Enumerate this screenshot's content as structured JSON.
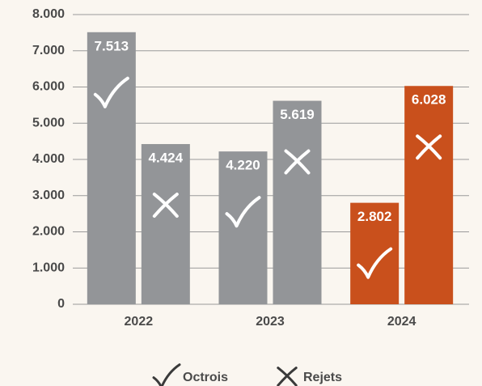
{
  "chart_data": {
    "type": "bar",
    "categories": [
      "2022",
      "2023",
      "2024"
    ],
    "series": [
      {
        "name": "Octrois",
        "values": [
          7513,
          4220,
          2802
        ],
        "value_labels": [
          "7.513",
          "4.220",
          "2.802"
        ],
        "colors": [
          "#939598",
          "#939598",
          "#c9501c"
        ]
      },
      {
        "name": "Rejets",
        "values": [
          4424,
          5619,
          6028
        ],
        "value_labels": [
          "4.424",
          "5.619",
          "6.028"
        ],
        "colors": [
          "#939598",
          "#939598",
          "#c9501c"
        ]
      }
    ],
    "ylim": [
      0,
      8000
    ],
    "yticks": [
      0,
      {
        "value": 1000,
        "label": "1.000"
      },
      {
        "value": 2000,
        "label": "2.000"
      },
      {
        "value": 3000,
        "label": "3.000"
      },
      {
        "value": 4000,
        "label": "4.000"
      },
      {
        "value": 5000,
        "label": "5.000"
      },
      {
        "value": 6000,
        "label": "6.000"
      },
      {
        "value": 7000,
        "label": "7.000"
      },
      {
        "value": 8000,
        "label": "8.000"
      }
    ],
    "grid": true,
    "legend": "bottom"
  }
}
